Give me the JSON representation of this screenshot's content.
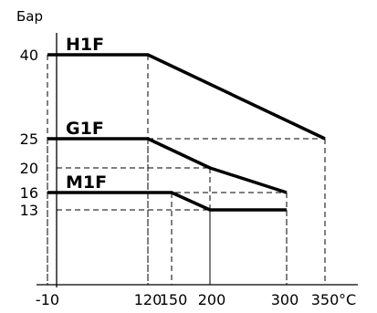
{
  "chart_data": {
    "type": "line",
    "title": "",
    "ylabel": "Бар",
    "xunit": "°C",
    "x_ticks": [
      "-10",
      "120",
      "150",
      "200",
      "300",
      "350"
    ],
    "x_tick_values": [
      -10,
      120,
      150,
      200,
      300,
      350
    ],
    "y_ticks": [
      "13",
      "16",
      "20",
      "25",
      "40"
    ],
    "y_tick_values": [
      13,
      16,
      20,
      25,
      40
    ],
    "xlim": [
      -10,
      350
    ],
    "ylim": [
      0,
      40
    ],
    "series": [
      {
        "name": "H1F",
        "x": [
          -10,
          120,
          350
        ],
        "y": [
          40,
          40,
          25
        ]
      },
      {
        "name": "G1F",
        "x": [
          -10,
          120,
          200,
          300
        ],
        "y": [
          25,
          25,
          20,
          16
        ]
      },
      {
        "name": "M1F",
        "x": [
          -10,
          150,
          200,
          300
        ],
        "y": [
          16,
          16,
          13,
          13
        ]
      }
    ]
  }
}
